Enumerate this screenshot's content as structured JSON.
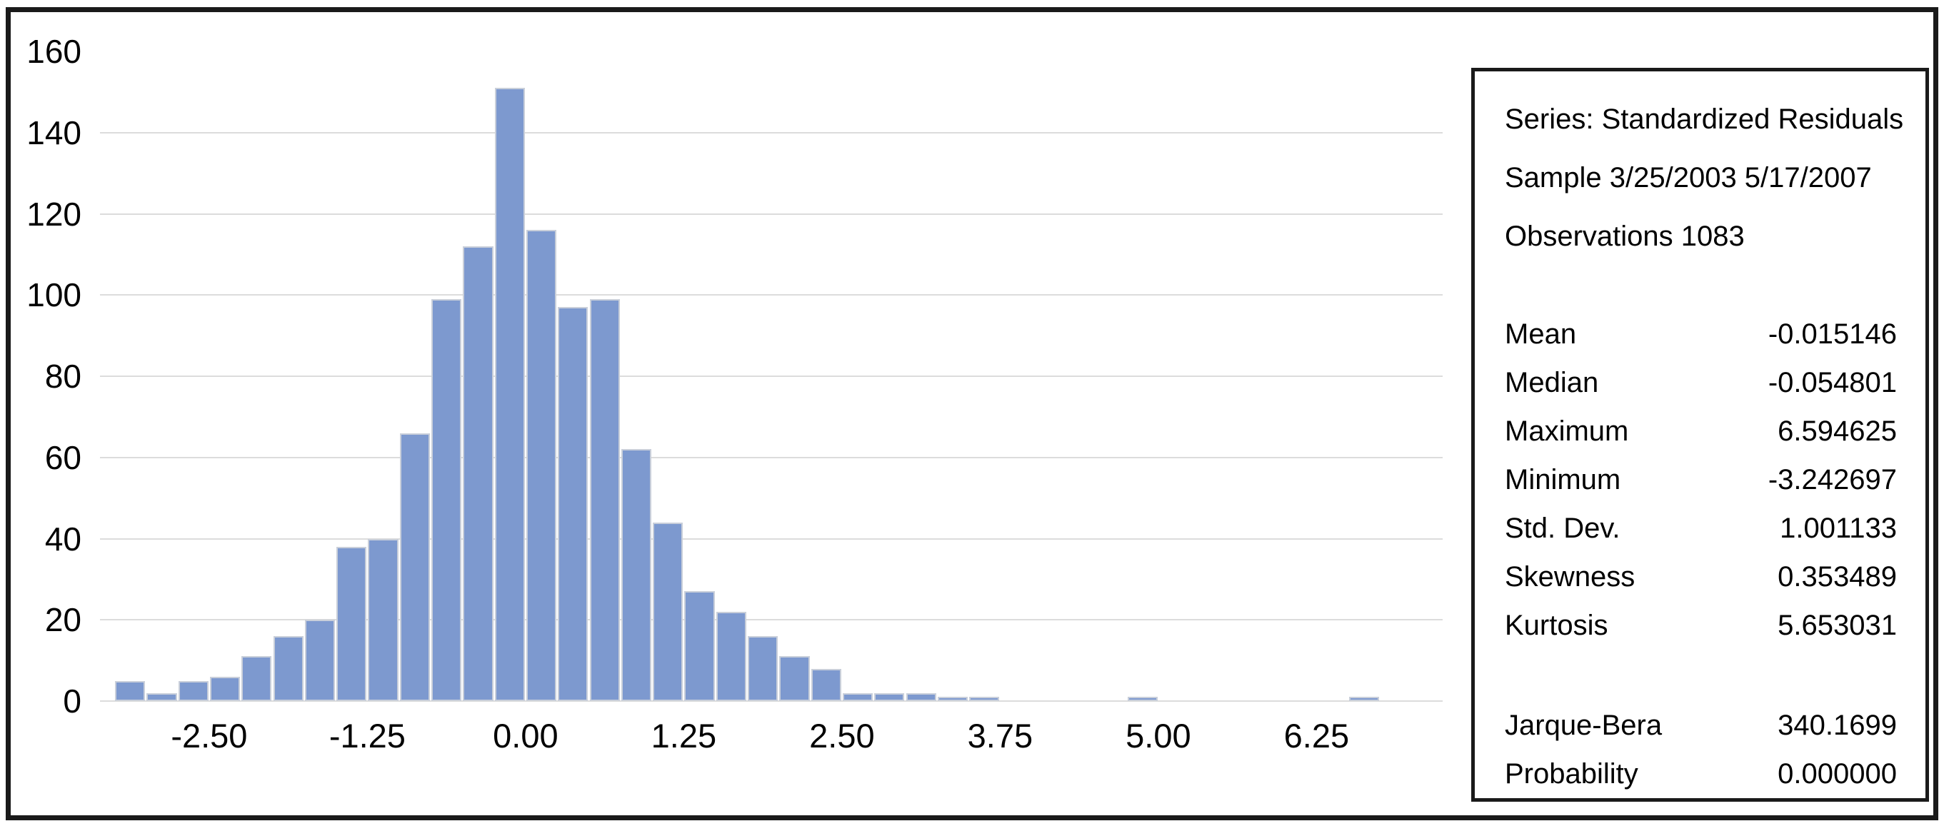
{
  "colors": {
    "bar_fill": "#7d99cf",
    "bar_border": "#c9cfda",
    "gridline": "#dcdcdc",
    "frame": "#1a1a1a",
    "text": "#000000",
    "background": "#ffffff"
  },
  "chart_data": {
    "type": "bar",
    "subtype": "histogram",
    "title": "",
    "xlabel": "",
    "ylabel": "",
    "series_name": "Standardized Residuals",
    "bin_start": -3.25,
    "bin_width": 0.25,
    "counts": [
      5,
      2,
      5,
      6,
      11,
      16,
      20,
      38,
      40,
      66,
      99,
      112,
      151,
      116,
      97,
      99,
      62,
      44,
      27,
      22,
      16,
      11,
      8,
      2,
      2,
      2,
      1,
      1,
      0,
      0,
      0,
      0,
      1,
      0,
      0,
      0,
      0,
      0,
      0,
      1
    ],
    "total_observations": 1083,
    "y_ticks": [
      0,
      20,
      40,
      60,
      80,
      100,
      120,
      140,
      160
    ],
    "ylim": [
      0,
      160
    ],
    "x_ticks": [
      {
        "value": -2.5,
        "label": "-2.50"
      },
      {
        "value": -1.25,
        "label": "-1.25"
      },
      {
        "value": 0.0,
        "label": "0.00"
      },
      {
        "value": 1.25,
        "label": "1.25"
      },
      {
        "value": 2.5,
        "label": "2.50"
      },
      {
        "value": 3.75,
        "label": "3.75"
      },
      {
        "value": 5.0,
        "label": "5.00"
      },
      {
        "value": 6.25,
        "label": "6.25"
      }
    ],
    "xlim": [
      -3.36,
      7.25
    ],
    "grid": "horizontal-only",
    "legend_position": "none"
  },
  "stats_box": {
    "header_lines": [
      "Series: Standardized Residuals",
      "Sample 3/25/2003 5/17/2007",
      "Observations 1083"
    ],
    "rows": [
      {
        "label": "Mean",
        "value": "-0.015146"
      },
      {
        "label": "Median",
        "value": "-0.054801"
      },
      {
        "label": "Maximum",
        "value": "6.594625"
      },
      {
        "label": "Minimum",
        "value": "-3.242697"
      },
      {
        "label": "Std. Dev.",
        "value": "1.001133"
      },
      {
        "label": "Skewness",
        "value": "0.353489"
      },
      {
        "label": "Kurtosis",
        "value": "5.653031"
      }
    ],
    "bottom_rows": [
      {
        "label": "Jarque-Bera",
        "value": "340.1699"
      },
      {
        "label": "Probability",
        "value": "0.000000"
      }
    ]
  }
}
